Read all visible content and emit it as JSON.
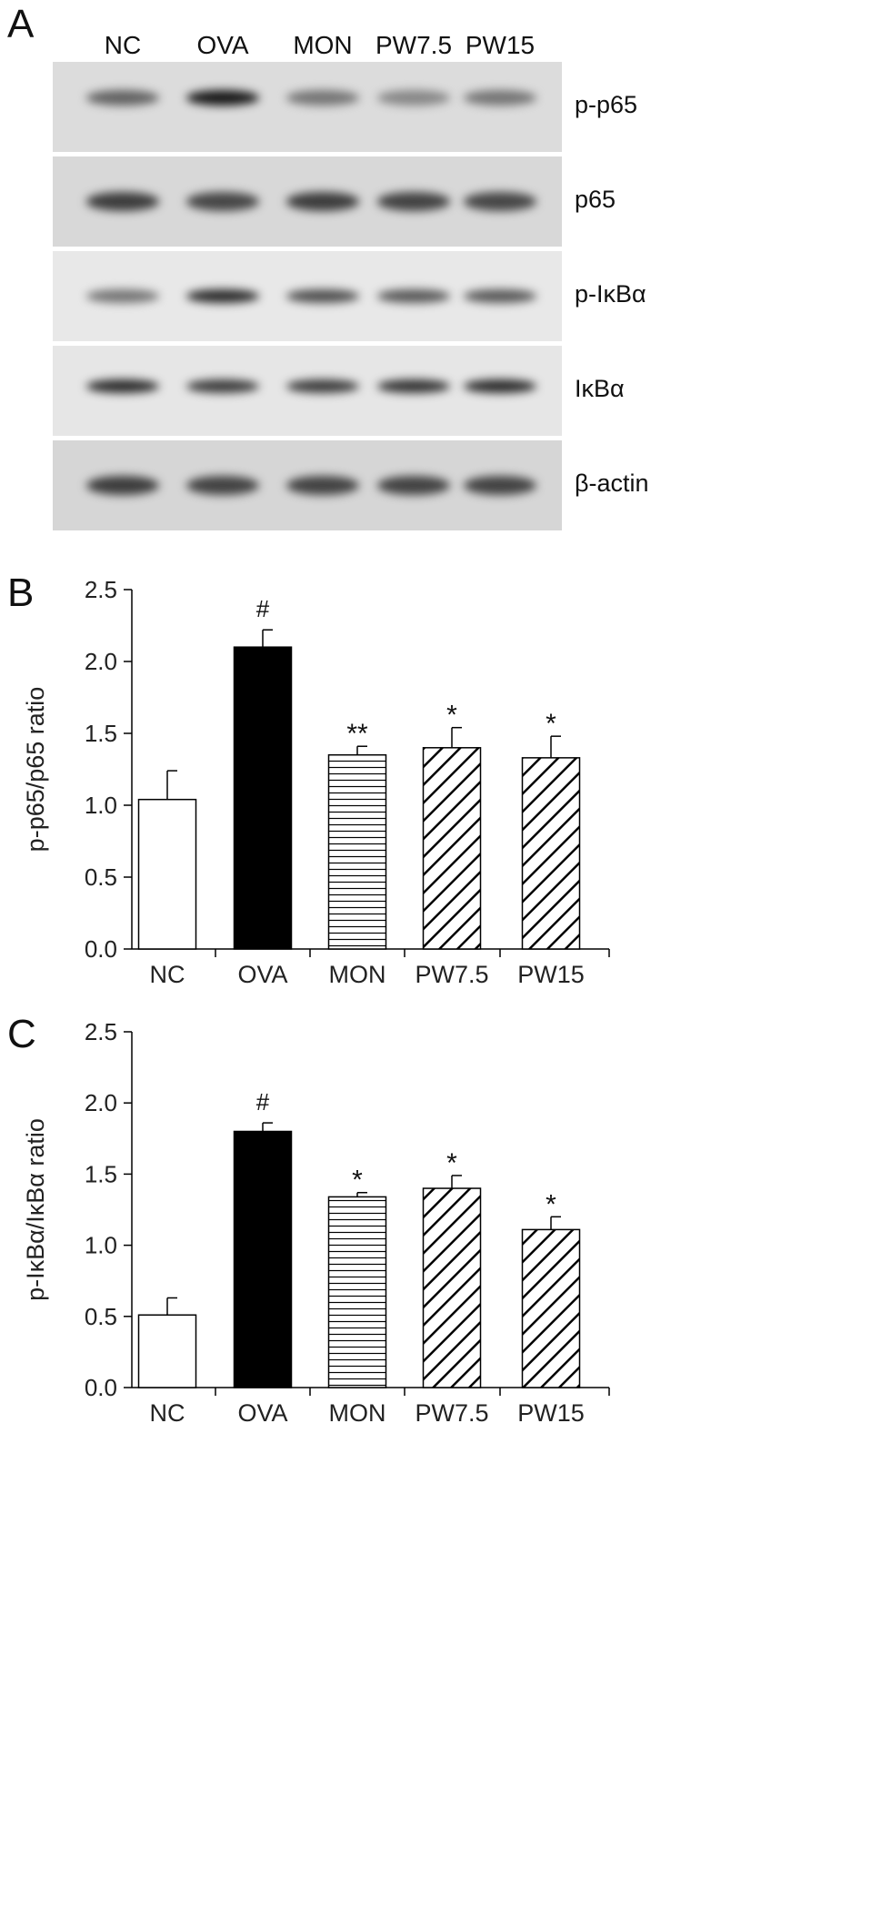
{
  "panels": {
    "a": "A",
    "b": "B",
    "c": "C"
  },
  "western_blot": {
    "lanes": [
      "NC",
      "OVA",
      "MON",
      "PW7.5",
      "PW15"
    ],
    "rows": [
      {
        "label": "p-p65",
        "background": "#dcdcdc",
        "band_darkness": [
          0.55,
          0.95,
          0.45,
          0.35,
          0.45
        ]
      },
      {
        "label": "p65",
        "background": "#d8d8d8",
        "band_darkness": [
          0.75,
          0.7,
          0.75,
          0.72,
          0.7
        ]
      },
      {
        "label": "p-IκBα",
        "background": "#e8e8e8",
        "band_darkness": [
          0.45,
          0.85,
          0.65,
          0.6,
          0.6
        ]
      },
      {
        "label": "IκBα",
        "background": "#e6e6e6",
        "band_darkness": [
          0.85,
          0.75,
          0.75,
          0.8,
          0.85
        ]
      },
      {
        "label": "β-actin",
        "background": "#d6d6d6",
        "band_darkness": [
          0.75,
          0.72,
          0.72,
          0.72,
          0.72
        ]
      }
    ]
  },
  "chart_data": [
    {
      "type": "bar",
      "categories": [
        "NC",
        "OVA",
        "MON",
        "PW7.5",
        "PW15"
      ],
      "values": [
        1.04,
        2.1,
        1.35,
        1.4,
        1.33
      ],
      "errors": [
        0.2,
        0.12,
        0.06,
        0.14,
        0.15
      ],
      "annotations": [
        "",
        "#",
        "**",
        "*",
        "*"
      ],
      "fills": [
        "white",
        "black",
        "horizontal",
        "diagonal",
        "diagonal"
      ],
      "title": "",
      "xlabel": "",
      "ylabel": "p-p65/p65 ratio",
      "ylim": [
        0,
        2.5
      ],
      "yticks": [
        "0.0",
        "0.5",
        "1.0",
        "1.5",
        "2.0",
        "2.5"
      ],
      "grid": false
    },
    {
      "type": "bar",
      "categories": [
        "NC",
        "OVA",
        "MON",
        "PW7.5",
        "PW15"
      ],
      "values": [
        0.51,
        1.8,
        1.34,
        1.4,
        1.11
      ],
      "errors": [
        0.12,
        0.06,
        0.03,
        0.09,
        0.09
      ],
      "annotations": [
        "",
        "#",
        "*",
        "*",
        "*"
      ],
      "fills": [
        "white",
        "black",
        "horizontal",
        "diagonal",
        "diagonal"
      ],
      "title": "",
      "xlabel": "",
      "ylabel": "p-IκBα/IκBα ratio",
      "ylim": [
        0,
        2.5
      ],
      "yticks": [
        "0.0",
        "0.5",
        "1.0",
        "1.5",
        "2.0",
        "2.5"
      ],
      "grid": false
    }
  ]
}
